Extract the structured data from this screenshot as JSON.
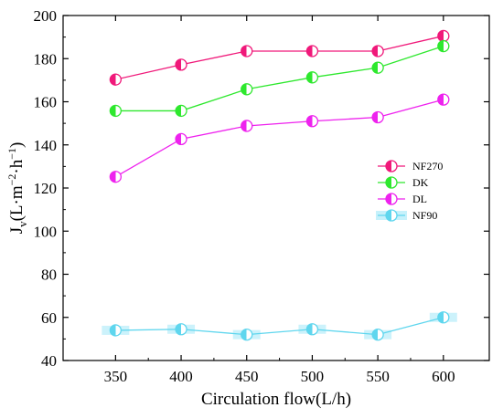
{
  "chart_data": {
    "type": "line",
    "title": "",
    "xlabel": "Circulation flow(L/h)",
    "ylabel_parts": {
      "main": "J",
      "sub": "v",
      "unit_open": "(L·m",
      "unit_exp1": "−2",
      "unit_mid": "·h",
      "unit_exp2": "−1",
      "unit_close": ")"
    },
    "x": [
      350,
      400,
      450,
      500,
      550,
      600
    ],
    "x_ticks": [
      350,
      400,
      450,
      500,
      550,
      600
    ],
    "y_ticks": [
      40,
      60,
      80,
      100,
      120,
      140,
      160,
      180,
      200
    ],
    "xlim": [
      310,
      635
    ],
    "ylim": [
      40,
      200
    ],
    "grid": false,
    "legend_position": "right-middle",
    "series": [
      {
        "name": "NF270",
        "color": "#f0197a",
        "values": [
          170.3,
          177.2,
          183.5,
          183.5,
          183.5,
          190.5
        ],
        "error_band": false
      },
      {
        "name": "DK",
        "color": "#2ee82e",
        "values": [
          155.8,
          155.8,
          165.8,
          171.3,
          175.8,
          185.8
        ],
        "error_band": false
      },
      {
        "name": "DL",
        "color": "#ee22ee",
        "values": [
          125.2,
          142.7,
          148.8,
          151.0,
          152.8,
          161.0
        ],
        "error_band": false
      },
      {
        "name": "NF90",
        "color": "#5fd6ee",
        "values": [
          54.0,
          54.5,
          52.0,
          54.5,
          52.0,
          60.0
        ],
        "error_band": true
      }
    ]
  }
}
